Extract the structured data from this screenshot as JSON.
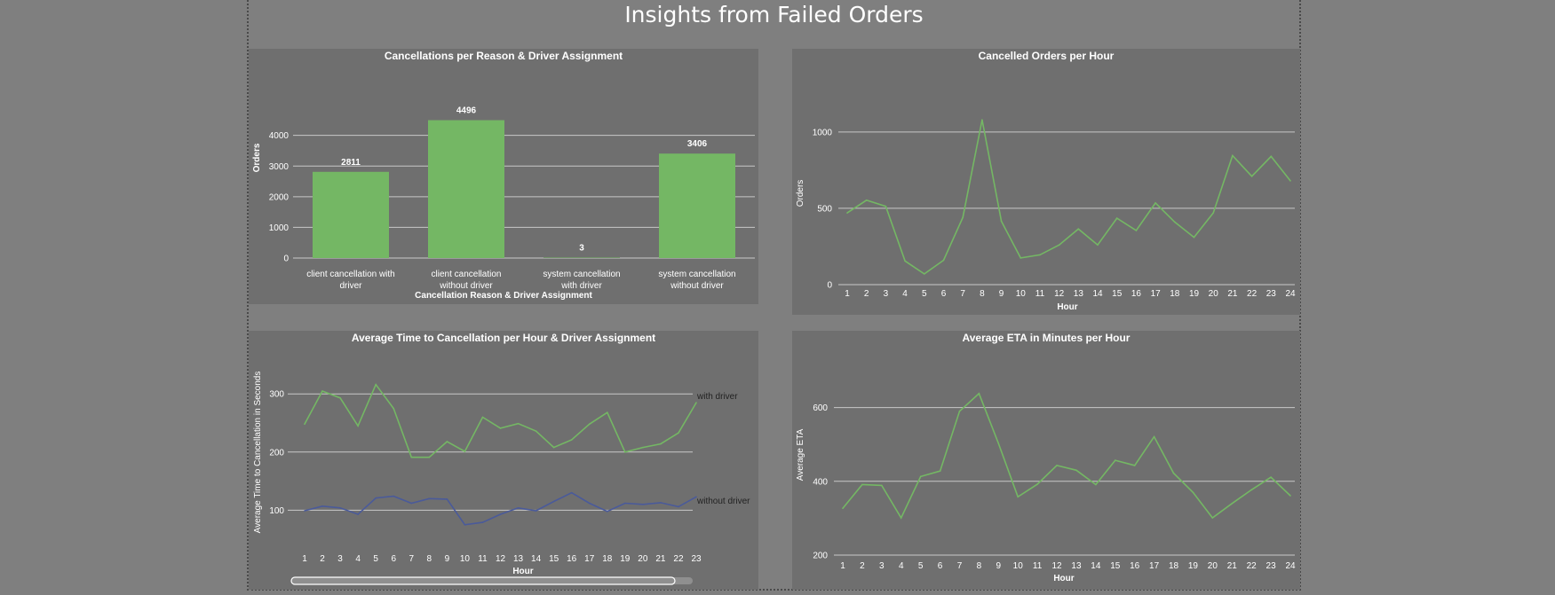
{
  "page_title": "Insights from Failed Orders",
  "colors": {
    "background": "#7f7f7f",
    "panel": "#6f6f6f",
    "green": "#74b764",
    "blue": "#4a5a9a",
    "grid": "#c8c8c8"
  },
  "chart_data": [
    {
      "id": "bar",
      "type": "bar",
      "title": "Cancellations per Reason & Driver Assignment",
      "xlabel": "Cancellation Reason & Driver Assignment",
      "ylabel": "Orders",
      "categories": [
        [
          "client cancellation with",
          "driver"
        ],
        [
          "client cancellation",
          "without driver"
        ],
        [
          "system cancellation",
          "with driver"
        ],
        [
          "system cancellation",
          "without driver"
        ]
      ],
      "values": [
        2811,
        4496,
        3,
        3406
      ],
      "ylim": [
        0,
        4800
      ],
      "yticks": [
        0,
        1000,
        2000,
        3000,
        4000
      ],
      "grid": true
    },
    {
      "id": "hourly",
      "type": "line",
      "title": "Cancelled Orders per Hour",
      "xlabel": "Hour",
      "ylabel": "Orders",
      "x": [
        1,
        2,
        3,
        4,
        5,
        6,
        7,
        8,
        9,
        10,
        11,
        12,
        13,
        14,
        15,
        16,
        17,
        18,
        19,
        20,
        21,
        22,
        23,
        24
      ],
      "values": [
        470,
        553,
        513,
        155,
        70,
        160,
        440,
        1080,
        415,
        175,
        195,
        260,
        365,
        260,
        435,
        355,
        535,
        410,
        310,
        470,
        845,
        710,
        840,
        680
      ],
      "ylim": [
        0,
        1150
      ],
      "yticks": [
        0,
        500,
        1000
      ],
      "grid": true
    },
    {
      "id": "time",
      "type": "line",
      "title": "Average Time to Cancellation per Hour & Driver Assignment",
      "xlabel": "Hour",
      "ylabel": "Average Time to Cancellation in Seconds",
      "x": [
        1,
        2,
        3,
        4,
        5,
        6,
        7,
        8,
        9,
        10,
        11,
        12,
        13,
        14,
        15,
        16,
        17,
        18,
        19,
        20,
        21,
        22,
        23
      ],
      "series": [
        {
          "name": "with driver",
          "values": [
            248,
            305,
            293,
            245,
            316,
            275,
            191,
            191,
            218,
            201,
            260,
            241,
            249,
            236,
            208,
            221,
            248,
            268,
            200,
            208,
            214,
            233,
            285
          ]
        },
        {
          "name": "without driver",
          "values": [
            99,
            107,
            104,
            93,
            121,
            124,
            112,
            120,
            119,
            75,
            79,
            93,
            104,
            99,
            115,
            130,
            112,
            98,
            112,
            110,
            113,
            106,
            123
          ]
        }
      ],
      "ylim": [
        35,
        340
      ],
      "yticks": [
        100,
        200,
        300
      ],
      "grid": true
    },
    {
      "id": "eta",
      "type": "line",
      "title": "Average ETA in Minutes per Hour",
      "xlabel": "Hour",
      "ylabel": "Average ETA",
      "x": [
        1,
        2,
        3,
        4,
        5,
        6,
        7,
        8,
        9,
        10,
        11,
        12,
        13,
        14,
        15,
        16,
        17,
        18,
        19,
        20,
        21,
        22,
        23,
        24
      ],
      "values": [
        327,
        391,
        389,
        301,
        413,
        428,
        590,
        638,
        503,
        358,
        392,
        443,
        430,
        391,
        457,
        443,
        521,
        422,
        370,
        301,
        340,
        377,
        411,
        361
      ],
      "ylim": [
        200,
        700
      ],
      "yticks": [
        200,
        400,
        600
      ],
      "grid": true
    }
  ]
}
